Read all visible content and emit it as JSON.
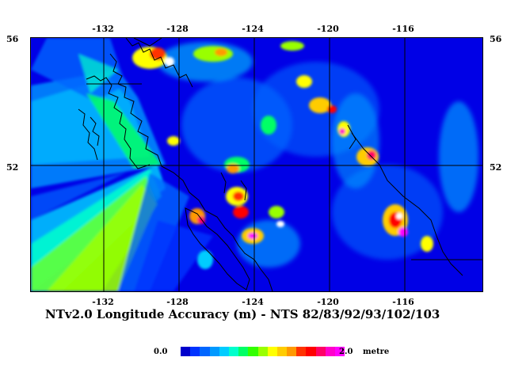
{
  "title": "NTv2.0 Longitude Accuracy (m) - NTS 82/83/92/93/102/103",
  "axes": {
    "x_ticks": [
      "-132",
      "-128",
      "-124",
      "-120",
      "-116"
    ],
    "y_ticks": [
      "56",
      "52"
    ],
    "lon_range": [
      -136,
      -112
    ],
    "lat_range": [
      48.6,
      56
    ]
  },
  "legend": {
    "min_label": "0.0",
    "max_label": "2.0",
    "unit": "metre",
    "colors": [
      "#0000cc",
      "#0033ff",
      "#0066ff",
      "#0099ff",
      "#00ccff",
      "#00ffcc",
      "#00ff66",
      "#33ff00",
      "#99ff00",
      "#ffff00",
      "#ffcc00",
      "#ff9900",
      "#ff3300",
      "#ff0000",
      "#ff0066",
      "#ff00cc",
      "#ff00ff"
    ]
  },
  "colors": {
    "background": "#0000e6",
    "grid": "#000000",
    "coast": "#000000"
  }
}
